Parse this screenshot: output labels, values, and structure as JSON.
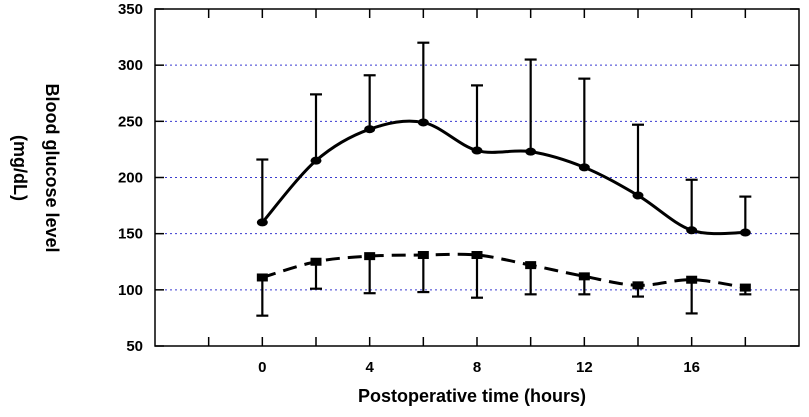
{
  "chart_data": {
    "type": "line",
    "xlabel": "Postoperative time (hours)",
    "ylabel": [
      "Blood glucose level",
      "(mg/dL)"
    ],
    "xlim": [
      -4,
      20
    ],
    "ylim": [
      50,
      350
    ],
    "x_ticks": [
      0,
      4,
      8,
      12,
      16
    ],
    "y_ticks": [
      50,
      100,
      150,
      200,
      250,
      300,
      350
    ],
    "grid": {
      "horizontal": true,
      "style": "dotted",
      "color": "#3a3ad0"
    },
    "x": [
      0,
      2,
      4,
      6,
      8,
      10,
      12,
      14,
      16,
      18
    ],
    "series": [
      {
        "line_style": "solid",
        "marker": "circle",
        "values": [
          160,
          215,
          243,
          249,
          224,
          223,
          209,
          184,
          153,
          151
        ],
        "error_upper": [
          216,
          274,
          291,
          320,
          282,
          305,
          288,
          247,
          198,
          183
        ]
      },
      {
        "line_style": "dashed",
        "marker": "square",
        "values": [
          111,
          125,
          130,
          131,
          131,
          122,
          112,
          104,
          109,
          102
        ],
        "error_lower": [
          77,
          101,
          97,
          98,
          93,
          96,
          96,
          94,
          79,
          96
        ]
      }
    ]
  }
}
